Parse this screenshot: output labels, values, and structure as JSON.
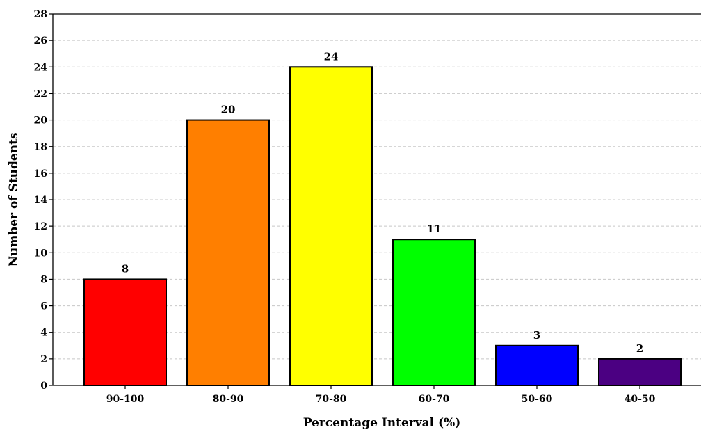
{
  "chart_data": {
    "type": "bar",
    "title": "",
    "xlabel": "Percentage Interval (%)",
    "ylabel": "Number of Students",
    "categories": [
      "90-100",
      "80-90",
      "70-80",
      "60-70",
      "50-60",
      "40-50"
    ],
    "values": [
      8,
      20,
      24,
      11,
      3,
      2
    ],
    "colors": [
      "#ff0000",
      "#ff7f00",
      "#ffff00",
      "#00ff00",
      "#0000ff",
      "#4b0082"
    ],
    "ylim": [
      0,
      28
    ],
    "yticks": [
      0,
      2,
      4,
      6,
      8,
      10,
      12,
      14,
      16,
      18,
      20,
      22,
      24,
      26,
      28
    ],
    "grid": "horizontal dashed",
    "legend": "none",
    "data_labels": true
  }
}
